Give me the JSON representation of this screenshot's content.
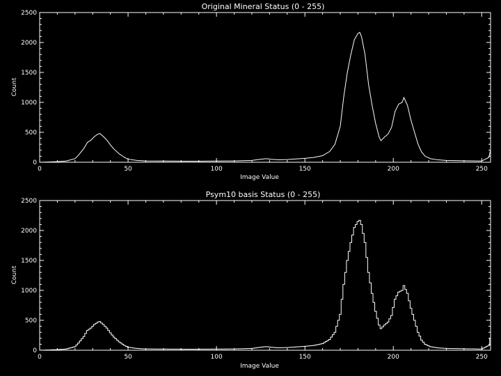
{
  "chart_data": [
    {
      "type": "line",
      "title": "Original Mineral Status (0 - 255)",
      "xlabel": "Image Value",
      "ylabel": "Count",
      "xlim": [
        0,
        255
      ],
      "ylim": [
        0,
        2500
      ],
      "xticks": [
        0,
        50,
        100,
        150,
        200,
        250
      ],
      "yticks": [
        0,
        500,
        1000,
        1500,
        2000,
        2500
      ],
      "grid": false,
      "style": "polyline",
      "color": "#ffffff",
      "series": [
        {
          "points": [
            [
              0,
              0
            ],
            [
              5,
              5
            ],
            [
              10,
              10
            ],
            [
              15,
              20
            ],
            [
              20,
              60
            ],
            [
              22,
              120
            ],
            [
              25,
              230
            ],
            [
              27,
              330
            ],
            [
              29,
              370
            ],
            [
              31,
              430
            ],
            [
              33,
              470
            ],
            [
              34,
              480
            ],
            [
              36,
              430
            ],
            [
              38,
              370
            ],
            [
              40,
              290
            ],
            [
              42,
              220
            ],
            [
              45,
              140
            ],
            [
              48,
              80
            ],
            [
              50,
              50
            ],
            [
              55,
              30
            ],
            [
              60,
              22
            ],
            [
              70,
              20
            ],
            [
              80,
              18
            ],
            [
              90,
              18
            ],
            [
              100,
              20
            ],
            [
              110,
              22
            ],
            [
              120,
              30
            ],
            [
              125,
              50
            ],
            [
              128,
              60
            ],
            [
              131,
              50
            ],
            [
              135,
              40
            ],
            [
              140,
              45
            ],
            [
              145,
              55
            ],
            [
              150,
              65
            ],
            [
              155,
              80
            ],
            [
              160,
              110
            ],
            [
              164,
              180
            ],
            [
              167,
              300
            ],
            [
              170,
              600
            ],
            [
              172,
              1100
            ],
            [
              174,
              1500
            ],
            [
              176,
              1800
            ],
            [
              178,
              2050
            ],
            [
              180,
              2150
            ],
            [
              181,
              2170
            ],
            [
              182,
              2100
            ],
            [
              184,
              1800
            ],
            [
              186,
              1300
            ],
            [
              188,
              950
            ],
            [
              190,
              650
            ],
            [
              192,
              420
            ],
            [
              193,
              360
            ],
            [
              195,
              420
            ],
            [
              197,
              470
            ],
            [
              199,
              580
            ],
            [
              201,
              850
            ],
            [
              203,
              970
            ],
            [
              205,
              1000
            ],
            [
              206,
              1080
            ],
            [
              208,
              950
            ],
            [
              210,
              700
            ],
            [
              212,
              500
            ],
            [
              214,
              300
            ],
            [
              216,
              170
            ],
            [
              218,
              100
            ],
            [
              221,
              60
            ],
            [
              225,
              40
            ],
            [
              230,
              30
            ],
            [
              240,
              25
            ],
            [
              250,
              20
            ],
            [
              254,
              80
            ],
            [
              255,
              200
            ]
          ]
        }
      ]
    },
    {
      "type": "line",
      "title": "Psym10 basis Status (0 - 255)",
      "xlabel": "Image Value",
      "ylabel": "Count",
      "xlim": [
        0,
        255
      ],
      "ylim": [
        0,
        2500
      ],
      "xticks": [
        0,
        50,
        100,
        150,
        200,
        250
      ],
      "yticks": [
        0,
        500,
        1000,
        1500,
        2000,
        2500
      ],
      "grid": false,
      "style": "histogram-step",
      "color": "#ffffff",
      "series": [
        {
          "points": [
            [
              0,
              0
            ],
            [
              5,
              5
            ],
            [
              10,
              10
            ],
            [
              15,
              20
            ],
            [
              20,
              60
            ],
            [
              22,
              120
            ],
            [
              25,
              230
            ],
            [
              27,
              330
            ],
            [
              29,
              370
            ],
            [
              31,
              430
            ],
            [
              33,
              470
            ],
            [
              34,
              480
            ],
            [
              36,
              430
            ],
            [
              38,
              370
            ],
            [
              40,
              290
            ],
            [
              42,
              220
            ],
            [
              45,
              140
            ],
            [
              48,
              80
            ],
            [
              50,
              50
            ],
            [
              55,
              30
            ],
            [
              60,
              22
            ],
            [
              70,
              20
            ],
            [
              80,
              18
            ],
            [
              90,
              18
            ],
            [
              100,
              20
            ],
            [
              110,
              22
            ],
            [
              120,
              30
            ],
            [
              125,
              50
            ],
            [
              128,
              60
            ],
            [
              131,
              50
            ],
            [
              135,
              40
            ],
            [
              140,
              45
            ],
            [
              145,
              55
            ],
            [
              150,
              65
            ],
            [
              155,
              80
            ],
            [
              160,
              110
            ],
            [
              164,
              180
            ],
            [
              167,
              300
            ],
            [
              170,
              600
            ],
            [
              172,
              1100
            ],
            [
              174,
              1500
            ],
            [
              176,
              1800
            ],
            [
              178,
              2050
            ],
            [
              180,
              2150
            ],
            [
              181,
              2170
            ],
            [
              182,
              2100
            ],
            [
              184,
              1800
            ],
            [
              186,
              1300
            ],
            [
              188,
              950
            ],
            [
              190,
              650
            ],
            [
              192,
              420
            ],
            [
              193,
              360
            ],
            [
              195,
              420
            ],
            [
              197,
              470
            ],
            [
              199,
              580
            ],
            [
              201,
              850
            ],
            [
              203,
              970
            ],
            [
              205,
              1000
            ],
            [
              206,
              1080
            ],
            [
              208,
              950
            ],
            [
              210,
              700
            ],
            [
              212,
              500
            ],
            [
              214,
              300
            ],
            [
              216,
              170
            ],
            [
              218,
              100
            ],
            [
              221,
              60
            ],
            [
              225,
              40
            ],
            [
              230,
              30
            ],
            [
              240,
              25
            ],
            [
              250,
              20
            ],
            [
              254,
              80
            ],
            [
              255,
              200
            ]
          ]
        }
      ]
    }
  ]
}
